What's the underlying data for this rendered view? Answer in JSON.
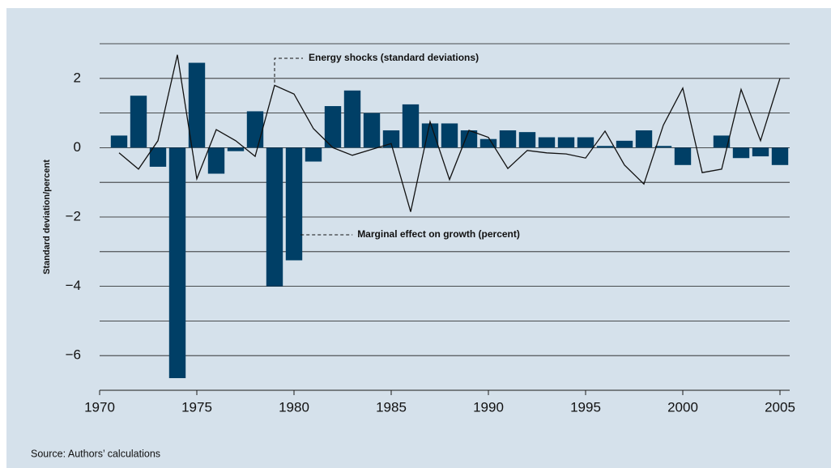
{
  "chart_data": {
    "type": "bar",
    "y_label": "Standard deviation/percent",
    "source": "Source: Authors’ calculations",
    "annotations": [
      "Energy shocks (standard deviations)",
      "Marginal effect on growth (percent)"
    ],
    "x": [
      1971,
      1972,
      1973,
      1974,
      1975,
      1976,
      1977,
      1978,
      1979,
      1980,
      1981,
      1982,
      1983,
      1984,
      1985,
      1986,
      1987,
      1988,
      1989,
      1990,
      1991,
      1992,
      1993,
      1994,
      1995,
      1996,
      1997,
      1998,
      1999,
      2000,
      2001,
      2002,
      2003,
      2004,
      2005
    ],
    "series": [
      {
        "name": "Marginal effect on growth (percent)",
        "type": "bar",
        "color": "#003f66",
        "values": [
          0.35,
          1.5,
          -0.55,
          -6.65,
          2.45,
          -0.75,
          -0.1,
          1.05,
          -4.0,
          -3.25,
          -0.4,
          1.2,
          1.65,
          1.0,
          0.5,
          1.25,
          0.7,
          0.7,
          0.5,
          0.25,
          0.5,
          0.45,
          0.3,
          0.3,
          0.3,
          0.05,
          0.2,
          0.5,
          0.05,
          -0.5,
          0,
          0.35,
          -0.3,
          -0.25,
          -0.5
        ]
      },
      {
        "name": "Energy shocks (standard deviations)",
        "type": "line",
        "color": "#111111",
        "values": [
          -0.15,
          -0.62,
          0.2,
          2.68,
          -0.9,
          0.52,
          0.2,
          -0.25,
          1.8,
          1.55,
          0.55,
          0.0,
          -0.22,
          -0.05,
          0.12,
          -1.85,
          0.75,
          -0.92,
          0.5,
          0.3,
          -0.6,
          -0.08,
          -0.15,
          -0.18,
          -0.3,
          0.48,
          -0.5,
          -1.05,
          0.65,
          1.72,
          -0.72,
          -0.62,
          1.68,
          0.2,
          2.0
        ]
      }
    ],
    "xlim": [
      1970,
      2005.5
    ],
    "xticks": [
      1970,
      1975,
      1980,
      1985,
      1990,
      1995,
      2000,
      2005
    ],
    "ylim": [
      -7,
      3
    ],
    "yticks": [
      {
        "value": -6,
        "label": "−6"
      },
      {
        "value": -4,
        "label": "−4"
      },
      {
        "value": -2,
        "label": "−2"
      },
      0,
      2
    ],
    "ygrid": [
      -7,
      -6,
      -5,
      -4,
      -3,
      -2,
      -1,
      0,
      1,
      2,
      3
    ],
    "grid": true
  }
}
